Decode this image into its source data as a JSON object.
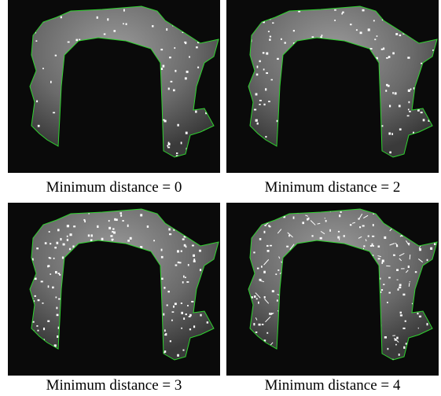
{
  "figure": {
    "panels": [
      {
        "caption": "Minimum distance = 0"
      },
      {
        "caption": "Minimum distance = 2"
      },
      {
        "caption": "Minimum distance = 3"
      },
      {
        "caption": "Minimum distance = 4"
      }
    ]
  }
}
